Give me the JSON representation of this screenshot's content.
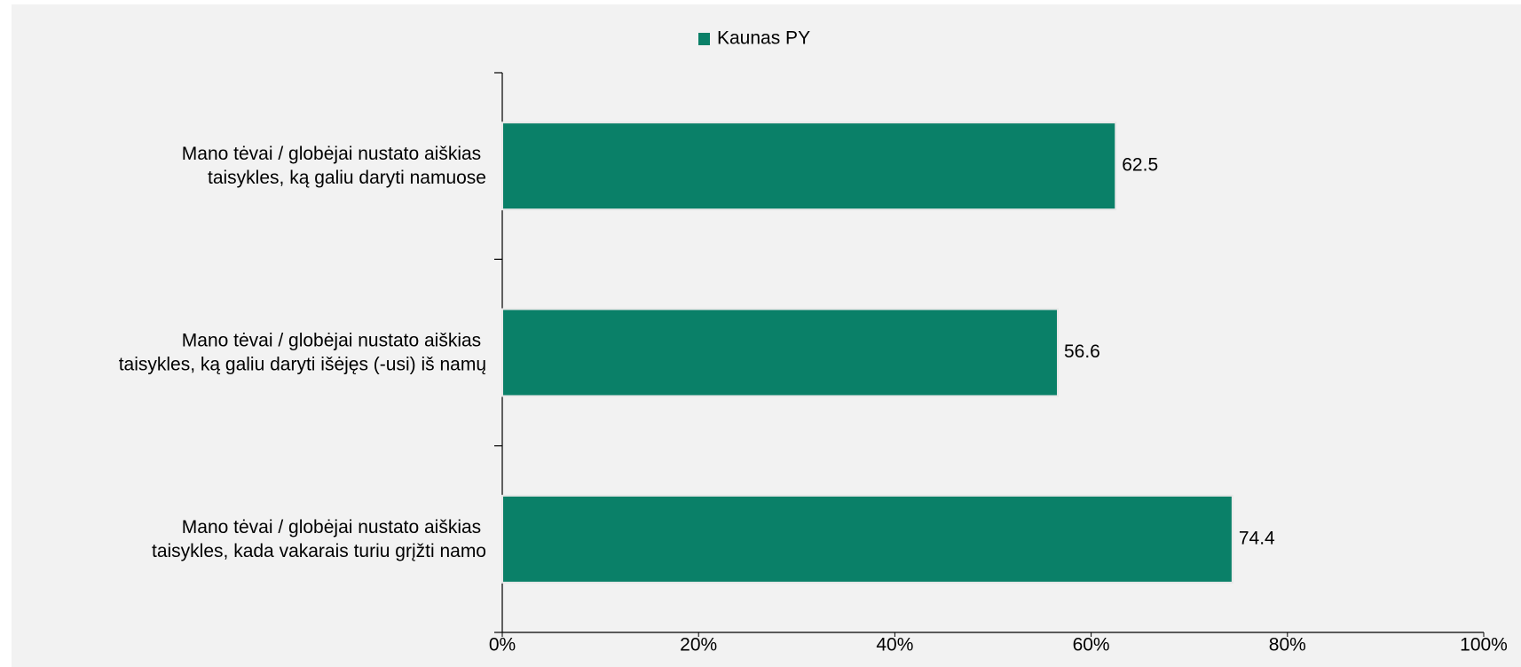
{
  "chart_data": {
    "type": "barh",
    "categories": [
      "Mano tėvai / globėjai nustato aiškias taisykles, ką galiu daryti namuose",
      "Mano tėvai / globėjai nustato aiškias taisykles, ką galiu daryti išėjęs (-usi) iš namų",
      "Mano tėvai / globėjai nustato aiškias taisykles, kada vakarais turiu grįžti namo"
    ],
    "series": [
      {
        "name": "Kaunas PY",
        "color": "#0a8068",
        "values": [
          62.5,
          56.6,
          74.4
        ]
      }
    ],
    "xlim": [
      0,
      100
    ],
    "xticks": [
      {
        "value": 0,
        "label": "0%"
      },
      {
        "value": 20,
        "label": "20%"
      },
      {
        "value": 40,
        "label": "40%"
      },
      {
        "value": 60,
        "label": "60%"
      },
      {
        "value": 80,
        "label": "80%"
      },
      {
        "value": 100,
        "label": "100%"
      }
    ],
    "legend": "top"
  }
}
